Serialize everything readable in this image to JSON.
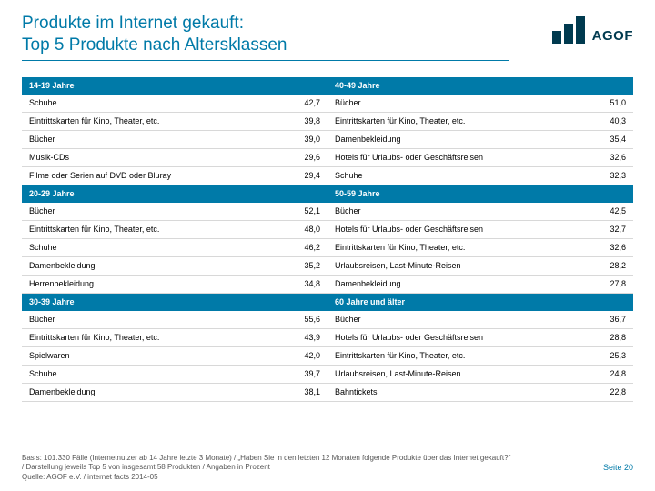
{
  "title_line1": "Produkte im Internet gekauft:",
  "title_line2": "Top 5 Produkte nach Altersklassen",
  "logo_text": "AGOF",
  "sections": [
    {
      "left_header": "14-19 Jahre",
      "right_header": "40-49 Jahre",
      "rows": [
        {
          "l": "Schuhe",
          "lv": "42,7",
          "r": "Bücher",
          "rv": "51,0"
        },
        {
          "l": "Eintrittskarten für Kino, Theater, etc.",
          "lv": "39,8",
          "r": "Eintrittskarten für Kino, Theater, etc.",
          "rv": "40,3"
        },
        {
          "l": "Bücher",
          "lv": "39,0",
          "r": "Damenbekleidung",
          "rv": "35,4"
        },
        {
          "l": "Musik-CDs",
          "lv": "29,6",
          "r": "Hotels für Urlaubs- oder Geschäftsreisen",
          "rv": "32,6"
        },
        {
          "l": "Filme oder Serien auf DVD oder Bluray",
          "lv": "29,4",
          "r": "Schuhe",
          "rv": "32,3"
        }
      ]
    },
    {
      "left_header": "20-29 Jahre",
      "right_header": "50-59 Jahre",
      "rows": [
        {
          "l": "Bücher",
          "lv": "52,1",
          "r": "Bücher",
          "rv": "42,5"
        },
        {
          "l": "Eintrittskarten für Kino, Theater, etc.",
          "lv": "48,0",
          "r": "Hotels für Urlaubs- oder Geschäftsreisen",
          "rv": "32,7"
        },
        {
          "l": "Schuhe",
          "lv": "46,2",
          "r": "Eintrittskarten für Kino, Theater, etc.",
          "rv": "32,6"
        },
        {
          "l": "Damenbekleidung",
          "lv": "35,2",
          "r": "Urlaubsreisen, Last-Minute-Reisen",
          "rv": "28,2"
        },
        {
          "l": "Herrenbekleidung",
          "lv": "34,8",
          "r": "Damenbekleidung",
          "rv": "27,8"
        }
      ]
    },
    {
      "left_header": "30-39 Jahre",
      "right_header": "60 Jahre und älter",
      "rows": [
        {
          "l": "Bücher",
          "lv": "55,6",
          "r": "Bücher",
          "rv": "36,7"
        },
        {
          "l": "Eintrittskarten für Kino, Theater, etc.",
          "lv": "43,9",
          "r": "Hotels für Urlaubs- oder Geschäftsreisen",
          "rv": "28,8"
        },
        {
          "l": "Spielwaren",
          "lv": "42,0",
          "r": "Eintrittskarten für Kino, Theater, etc.",
          "rv": "25,3"
        },
        {
          "l": "Schuhe",
          "lv": "39,7",
          "r": "Urlaubsreisen, Last-Minute-Reisen",
          "rv": "24,8"
        },
        {
          "l": "Damenbekleidung",
          "lv": "38,1",
          "r": "Bahntickets",
          "rv": "22,8"
        }
      ]
    }
  ],
  "footer_basis": "Basis: 101.330 Fälle (Internetnutzer ab 14 Jahre letzte 3 Monate) / „Haben Sie in den letzten 12 Monaten folgende Produkte über das Internet gekauft?\" / Darstellung jeweils Top 5 von insgesamt 58 Produkten / Angaben in Prozent",
  "footer_source": "Quelle: AGOF e.V. / internet facts 2014-05",
  "page_label": "Seite 20",
  "colors": {
    "accent": "#007aa8",
    "logo": "#003a4f",
    "border": "#d8d8d8"
  },
  "logo_bar_heights": [
    14,
    22,
    30
  ]
}
